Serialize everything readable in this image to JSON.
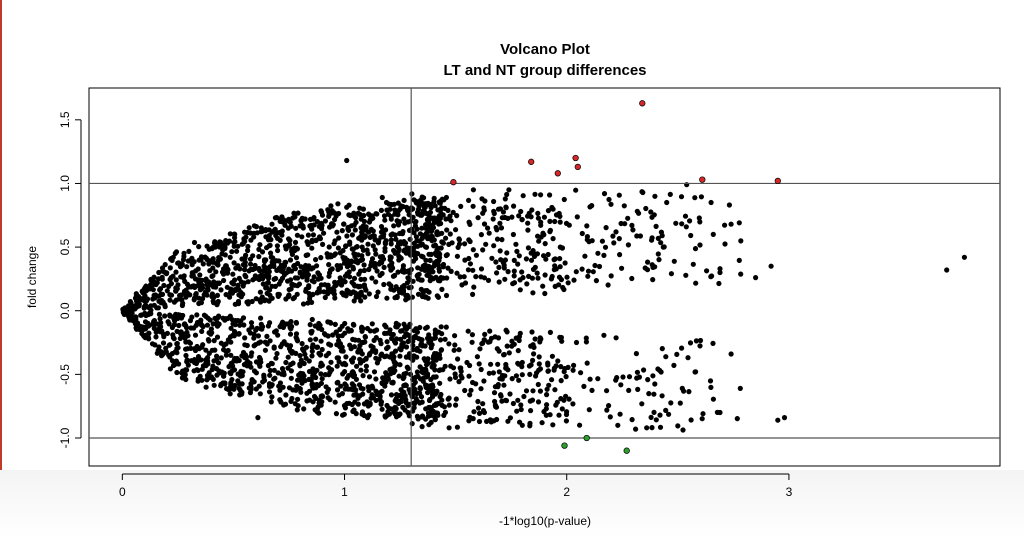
{
  "chart_data": {
    "type": "scatter",
    "title": "Volcano Plot",
    "subtitle": "LT and NT group differences",
    "xlabel": "-1*log10(p-value)",
    "ylabel": "fold change",
    "xlim": [
      -0.15,
      3.95
    ],
    "ylim": [
      -1.22,
      1.75
    ],
    "x_ticks": [
      0,
      1,
      2,
      3
    ],
    "x_tick_labels": [
      "0",
      "1",
      "2",
      "3"
    ],
    "y_ticks": [
      -1.0,
      -0.5,
      0.0,
      0.5,
      1.0,
      1.5
    ],
    "y_tick_labels": [
      "-1.0",
      "-0.5",
      "0.0",
      "0.5",
      "1.0",
      "1.5"
    ],
    "reference_lines": {
      "vertical_x": 1.3,
      "horizontal_y": [
        1.0,
        -1.0
      ]
    },
    "colors": {
      "default": "#000000",
      "up_significant": "#d62728",
      "down_significant": "#2ca02c"
    },
    "grid": false,
    "highlighted_points": [
      {
        "x": 1.49,
        "y": 1.01,
        "color": "red"
      },
      {
        "x": 1.84,
        "y": 1.17,
        "color": "red"
      },
      {
        "x": 1.96,
        "y": 1.08,
        "color": "red"
      },
      {
        "x": 2.04,
        "y": 1.2,
        "color": "red"
      },
      {
        "x": 2.05,
        "y": 1.13,
        "color": "red"
      },
      {
        "x": 2.34,
        "y": 1.63,
        "color": "red"
      },
      {
        "x": 2.61,
        "y": 1.03,
        "color": "red"
      },
      {
        "x": 2.95,
        "y": 1.02,
        "color": "red"
      },
      {
        "x": 1.99,
        "y": -1.06,
        "color": "green"
      },
      {
        "x": 2.09,
        "y": -1.0,
        "color": "green"
      },
      {
        "x": 2.27,
        "y": -1.1,
        "color": "green"
      }
    ],
    "outlier_points": [
      {
        "x": 1.01,
        "y": 1.18
      },
      {
        "x": 2.54,
        "y": 0.99
      },
      {
        "x": 2.65,
        "y": 0.85
      },
      {
        "x": 2.74,
        "y": 0.68
      },
      {
        "x": 2.69,
        "y": 0.33
      },
      {
        "x": 2.69,
        "y": 0.3
      },
      {
        "x": 2.85,
        "y": 0.26
      },
      {
        "x": 2.92,
        "y": 0.35
      },
      {
        "x": 3.71,
        "y": 0.32
      },
      {
        "x": 3.79,
        "y": 0.42
      },
      {
        "x": 2.95,
        "y": -0.86
      },
      {
        "x": 2.98,
        "y": -0.84
      },
      {
        "x": 2.69,
        "y": -0.8
      },
      {
        "x": 2.74,
        "y": -0.34
      },
      {
        "x": 2.58,
        "y": -0.48
      },
      {
        "x": 2.52,
        "y": -0.61
      },
      {
        "x": 2.36,
        "y": -0.92
      },
      {
        "x": 2.31,
        "y": -0.93
      },
      {
        "x": 2.42,
        "y": -0.82
      },
      {
        "x": 0.61,
        "y": -0.84
      },
      {
        "x": 0.97,
        "y": 0.84
      },
      {
        "x": 1.17,
        "y": 0.89
      },
      {
        "x": 1.58,
        "y": 0.95
      },
      {
        "x": 1.74,
        "y": 0.95
      },
      {
        "x": 2.17,
        "y": 0.92
      },
      {
        "x": 2.45,
        "y": 0.85
      },
      {
        "x": 2.23,
        "y": -0.9
      },
      {
        "x": 1.8,
        "y": -0.9
      }
    ],
    "point_cloud_description_bands": {
      "upper_envelope": [
        [
          0.0,
          0.0
        ],
        [
          0.25,
          0.48
        ],
        [
          0.5,
          0.62
        ],
        [
          0.8,
          0.78
        ],
        [
          1.3,
          0.88
        ],
        [
          1.8,
          0.92
        ],
        [
          2.3,
          0.95
        ]
      ],
      "upper_inner": [
        [
          0.0,
          0.0
        ],
        [
          0.5,
          0.05
        ],
        [
          1.0,
          0.08
        ],
        [
          1.5,
          0.1
        ],
        [
          2.0,
          0.14
        ],
        [
          2.5,
          0.2
        ]
      ],
      "lower_envelope": [
        [
          0.0,
          0.0
        ],
        [
          0.25,
          -0.52
        ],
        [
          0.5,
          -0.66
        ],
        [
          0.8,
          -0.78
        ],
        [
          1.3,
          -0.86
        ],
        [
          1.8,
          -0.9
        ],
        [
          2.3,
          -0.93
        ]
      ],
      "lower_inner": [
        [
          0.0,
          0.0
        ],
        [
          0.5,
          -0.05
        ],
        [
          1.0,
          -0.09
        ],
        [
          1.5,
          -0.12
        ],
        [
          2.0,
          -0.16
        ],
        [
          2.5,
          -0.2
        ]
      ]
    }
  }
}
